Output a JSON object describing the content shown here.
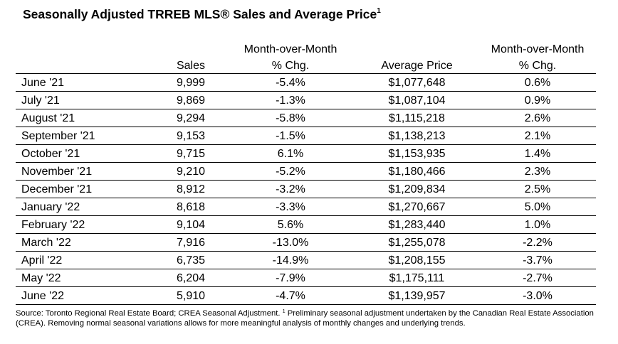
{
  "title": "Seasonally Adjusted TRREB MLS® Sales and Average Price",
  "title_sup": "1",
  "headers": {
    "sales": "Sales",
    "mom1_line1": "Month-over-Month",
    "mom1_line2": "% Chg.",
    "avg_price": "Average Price",
    "mom2_line1": "Month-over-Month",
    "mom2_line2": "% Chg."
  },
  "rows": [
    {
      "month": "June '21",
      "sales": "9,999",
      "sales_chg": "-5.4%",
      "price": "$1,077,648",
      "price_chg": "0.6%"
    },
    {
      "month": "July '21",
      "sales": "9,869",
      "sales_chg": "-1.3%",
      "price": "$1,087,104",
      "price_chg": "0.9%"
    },
    {
      "month": "August '21",
      "sales": "9,294",
      "sales_chg": "-5.8%",
      "price": "$1,115,218",
      "price_chg": "2.6%"
    },
    {
      "month": "September '21",
      "sales": "9,153",
      "sales_chg": "-1.5%",
      "price": "$1,138,213",
      "price_chg": "2.1%"
    },
    {
      "month": "October '21",
      "sales": "9,715",
      "sales_chg": "6.1%",
      "price": "$1,153,935",
      "price_chg": "1.4%"
    },
    {
      "month": "November '21",
      "sales": "9,210",
      "sales_chg": "-5.2%",
      "price": "$1,180,466",
      "price_chg": "2.3%"
    },
    {
      "month": "December '21",
      "sales": "8,912",
      "sales_chg": "-3.2%",
      "price": "$1,209,834",
      "price_chg": "2.5%"
    },
    {
      "month": "January '22",
      "sales": "8,618",
      "sales_chg": "-3.3%",
      "price": "$1,270,667",
      "price_chg": "5.0%"
    },
    {
      "month": "February '22",
      "sales": "9,104",
      "sales_chg": "5.6%",
      "price": "$1,283,440",
      "price_chg": "1.0%"
    },
    {
      "month": "March '22",
      "sales": "7,916",
      "sales_chg": "-13.0%",
      "price": "$1,255,078",
      "price_chg": "-2.2%"
    },
    {
      "month": "April '22",
      "sales": "6,735",
      "sales_chg": "-14.9%",
      "price": "$1,208,155",
      "price_chg": "-3.7%"
    },
    {
      "month": "May '22",
      "sales": "6,204",
      "sales_chg": "-7.9%",
      "price": "$1,175,111",
      "price_chg": "-2.7%"
    },
    {
      "month": "June '22",
      "sales": "5,910",
      "sales_chg": "-4.7%",
      "price": "$1,139,957",
      "price_chg": "-3.0%"
    }
  ],
  "footer": {
    "source_text": "Source: Toronto Regional Real Estate Board; CREA Seasonal Adjustment. ",
    "note_sup": "1",
    "note_text": " Preliminary seasonal adjustment undertaken by the Canadian Real Estate Association (CREA).  Removing normal seasonal variations allows for more meaningful analysis of monthly changes and underlying trends."
  }
}
